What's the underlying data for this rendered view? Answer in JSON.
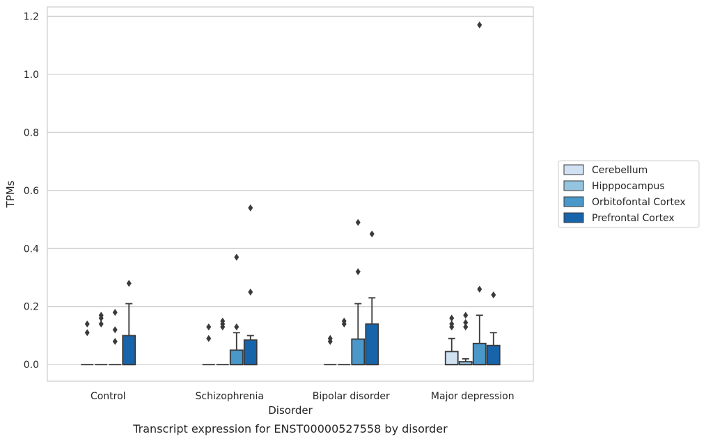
{
  "chart_data": {
    "type": "box",
    "xlabel": "Disorder",
    "ylabel": "TPMs",
    "caption": "Transcript expression for ENST00000527558 by disorder",
    "ylim": [
      -0.057,
      1.232
    ],
    "yticks": [
      "0.0",
      "0.2",
      "0.4",
      "0.6",
      "0.8",
      "1.0",
      "1.2"
    ],
    "grid": true,
    "legend_position": "right",
    "categories": [
      "Control",
      "Schizophrenia",
      "Bipolar disorder",
      "Major depression"
    ],
    "series": [
      {
        "name": "Cerebellum",
        "color": "#d0e1f2",
        "boxes": [
          {
            "q1": 0,
            "median": 0,
            "q3": 0,
            "whisker_low": 0,
            "whisker_high": 0,
            "outliers": [
              0.14,
              0.11
            ]
          },
          {
            "q1": 0,
            "median": 0,
            "q3": 0,
            "whisker_low": 0,
            "whisker_high": 0,
            "outliers": [
              0.13,
              0.09
            ]
          },
          {
            "q1": 0,
            "median": 0,
            "q3": 0,
            "whisker_low": 0,
            "whisker_high": 0,
            "outliers": [
              0.09,
              0.08
            ]
          },
          {
            "q1": 0,
            "median": 0,
            "q3": 0.045,
            "whisker_low": 0,
            "whisker_high": 0.09,
            "outliers": [
              0.16,
              0.14,
              0.13
            ]
          }
        ]
      },
      {
        "name": "Hipppocampus",
        "color": "#94c4df",
        "boxes": [
          {
            "q1": 0,
            "median": 0,
            "q3": 0,
            "whisker_low": 0,
            "whisker_high": 0,
            "outliers": [
              0.17,
              0.16,
              0.14
            ]
          },
          {
            "q1": 0,
            "median": 0,
            "q3": 0,
            "whisker_low": 0,
            "whisker_high": 0,
            "outliers": [
              0.15,
              0.14,
              0.13
            ]
          },
          {
            "q1": 0,
            "median": 0,
            "q3": 0,
            "whisker_low": 0,
            "whisker_high": 0,
            "outliers": [
              0.15,
              0.14
            ]
          },
          {
            "q1": 0,
            "median": 0,
            "q3": 0.01,
            "whisker_low": 0,
            "whisker_high": 0.02,
            "outliers": [
              0.17,
              0.145,
              0.13
            ]
          }
        ]
      },
      {
        "name": "Orbitofontal Cortex",
        "color": "#4a98c9",
        "boxes": [
          {
            "q1": 0,
            "median": 0,
            "q3": 0,
            "whisker_low": 0,
            "whisker_high": 0,
            "outliers": [
              0.18,
              0.12,
              0.08
            ]
          },
          {
            "q1": 0,
            "median": 0,
            "q3": 0.05,
            "whisker_low": 0,
            "whisker_high": 0.11,
            "outliers": [
              0.37,
              0.13
            ]
          },
          {
            "q1": 0,
            "median": 0,
            "q3": 0.088,
            "whisker_low": 0,
            "whisker_high": 0.21,
            "outliers": [
              0.49,
              0.32
            ]
          },
          {
            "q1": 0,
            "median": 0,
            "q3": 0.073,
            "whisker_low": 0,
            "whisker_high": 0.17,
            "outliers": [
              1.17,
              0.26
            ]
          }
        ]
      },
      {
        "name": "Prefrontal Cortex",
        "color": "#1764ab",
        "boxes": [
          {
            "q1": 0,
            "median": 0,
            "q3": 0.1,
            "whisker_low": 0,
            "whisker_high": 0.21,
            "outliers": [
              0.28
            ]
          },
          {
            "q1": 0,
            "median": 0,
            "q3": 0.085,
            "whisker_low": 0,
            "whisker_high": 0.1,
            "outliers": [
              0.54,
              0.25
            ]
          },
          {
            "q1": 0,
            "median": 0,
            "q3": 0.14,
            "whisker_low": 0,
            "whisker_high": 0.23,
            "outliers": [
              0.45
            ]
          },
          {
            "q1": 0,
            "median": 0,
            "q3": 0.066,
            "whisker_low": 0,
            "whisker_high": 0.11,
            "outliers": [
              0.24
            ]
          }
        ]
      }
    ]
  }
}
